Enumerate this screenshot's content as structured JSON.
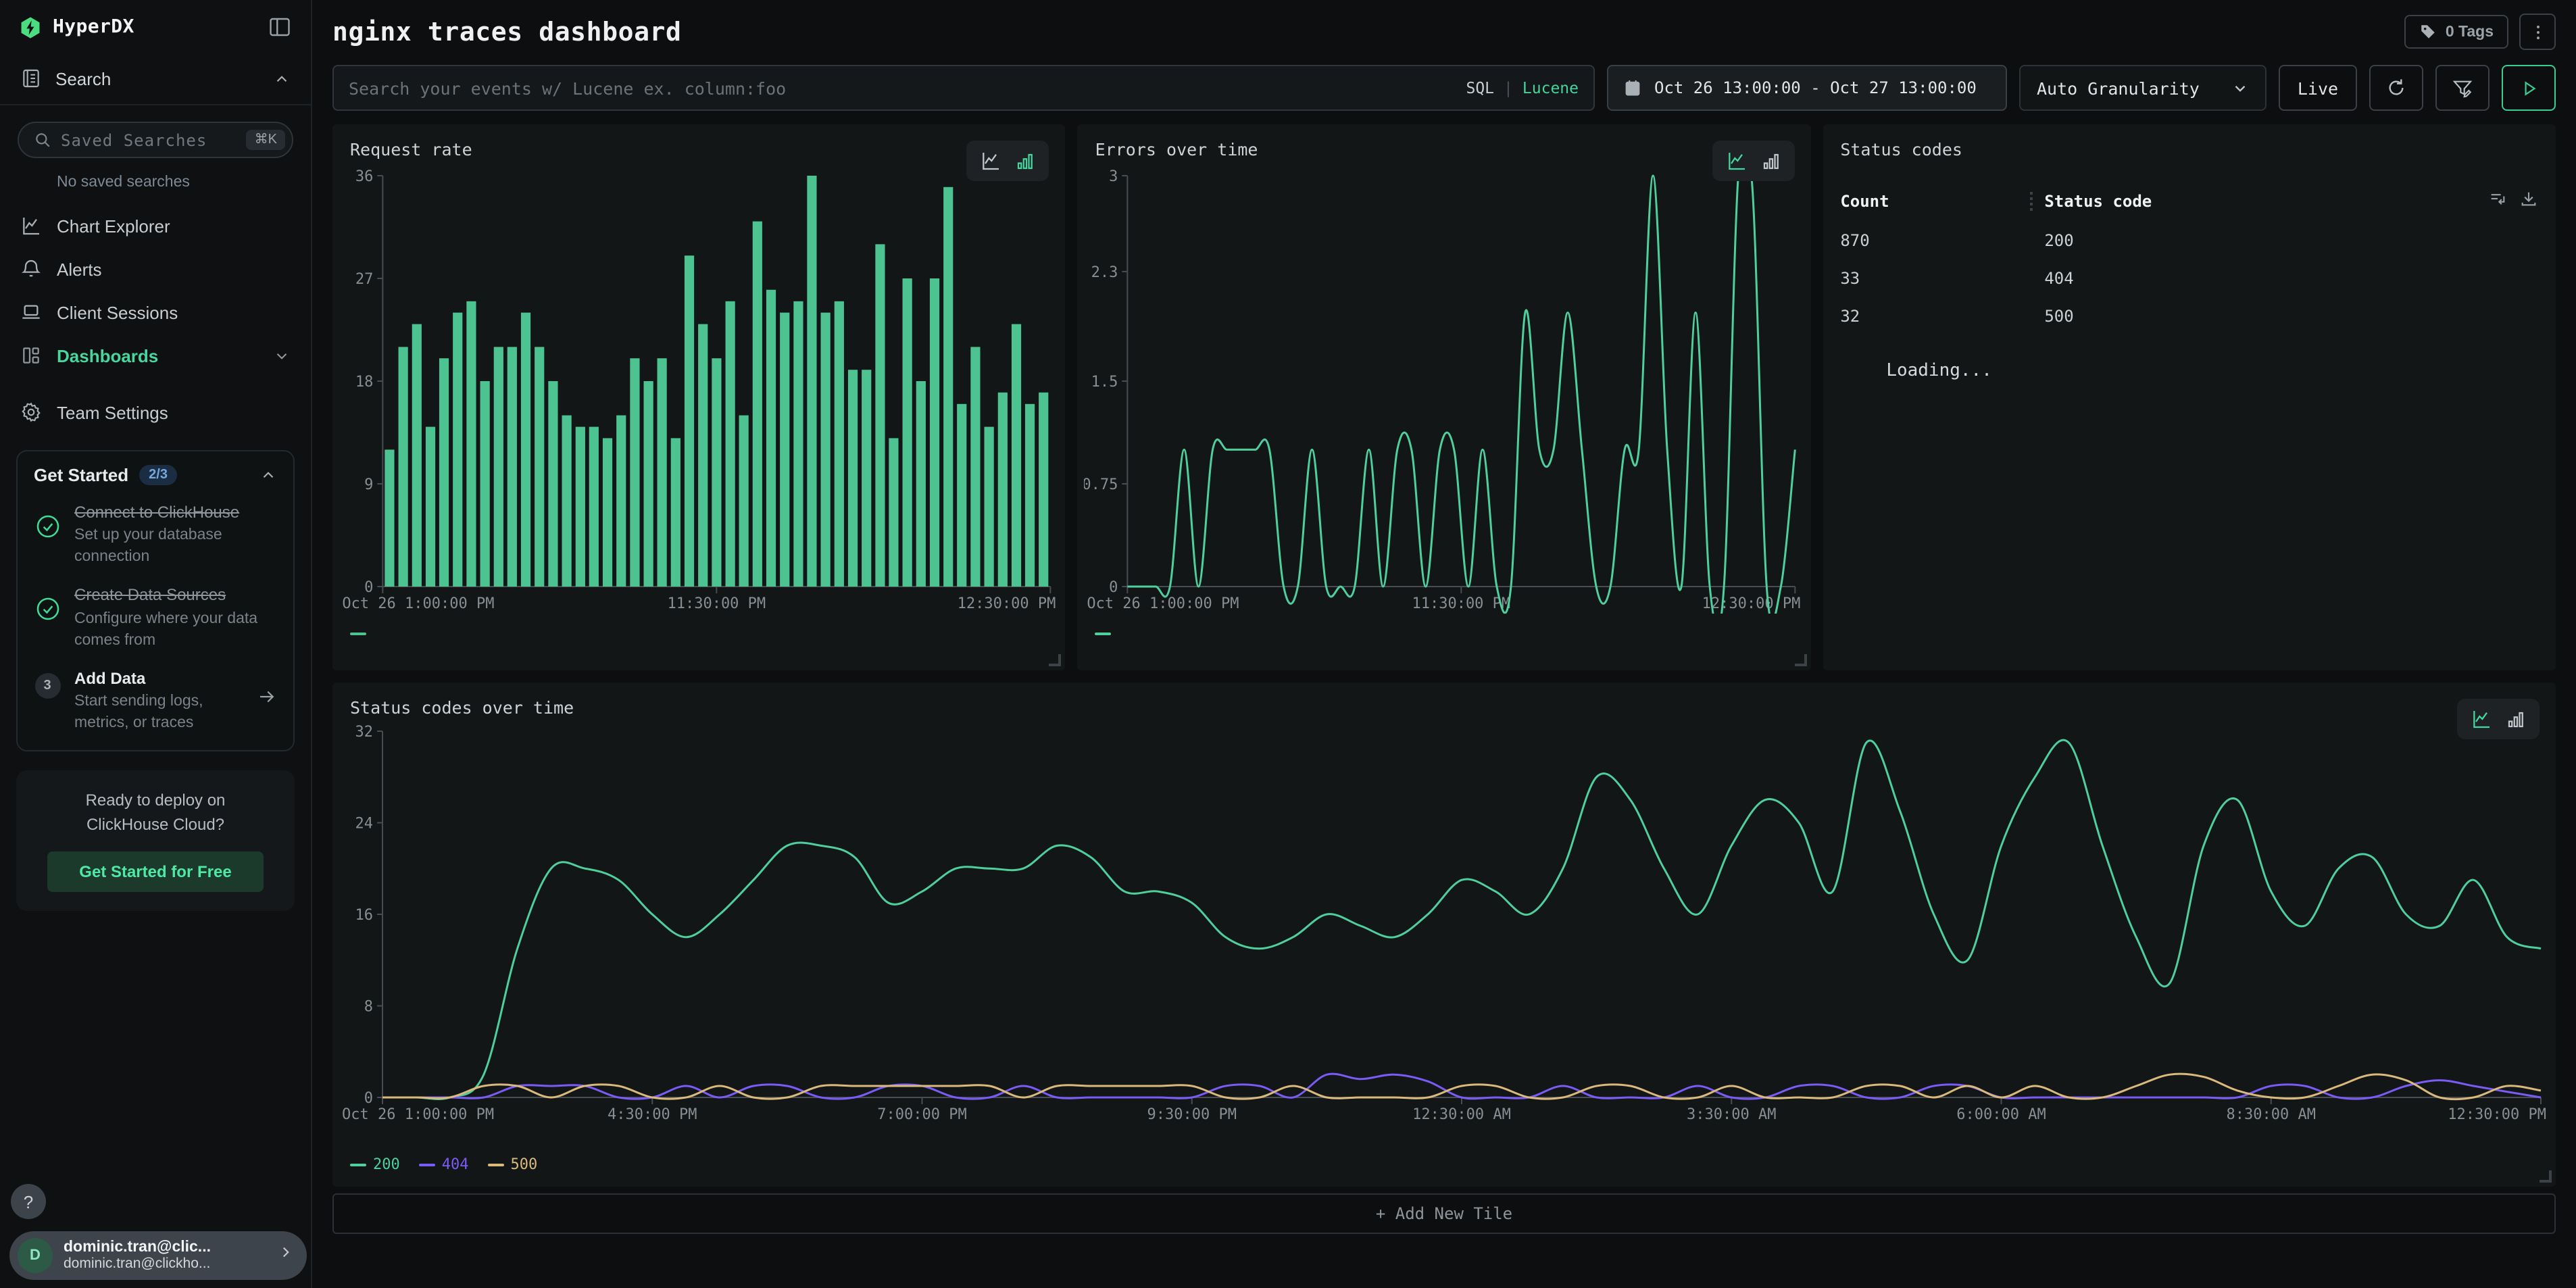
{
  "sidebar": {
    "brand": "HyperDX",
    "search_label": "Search",
    "saved_searches": {
      "placeholder": "Saved Searches",
      "shortcut": "⌘K",
      "empty": "No saved searches"
    },
    "nav": {
      "chart_explorer": "Chart Explorer",
      "alerts": "Alerts",
      "client_sessions": "Client Sessions",
      "dashboards": "Dashboards",
      "team_settings": "Team Settings"
    },
    "get_started": {
      "title": "Get Started",
      "badge": "2/3",
      "items": [
        {
          "title": "Connect to ClickHouse",
          "desc": "Set up your database connection",
          "done": true
        },
        {
          "title": "Create Data Sources",
          "desc": "Configure where your data comes from",
          "done": true
        },
        {
          "num": "3",
          "title": "Add Data",
          "desc": "Start sending logs, metrics, or traces",
          "done": false
        }
      ]
    },
    "cloud_card": {
      "line1": "Ready to deploy on",
      "line2": "ClickHouse Cloud?",
      "cta": "Get Started for Free"
    },
    "help_label": "?",
    "user": {
      "initial": "D",
      "name": "dominic.tran@clic...",
      "email": "dominic.tran@clickho..."
    }
  },
  "header": {
    "title": "nginx traces dashboard",
    "tags_label": "0 Tags"
  },
  "toolbar": {
    "search_placeholder": "Search your events w/ Lucene ex. column:foo",
    "sql_label": "SQL",
    "divider": "|",
    "lucene_label": "Lucene",
    "date_range": "Oct 26 13:00:00 - Oct 27 13:00:00",
    "granularity": "Auto Granularity",
    "live_label": "Live"
  },
  "panels": {
    "request_rate": "Request rate",
    "errors_over_time": "Errors over time",
    "status_codes": "Status codes",
    "status_codes_over_time": "Status codes over time"
  },
  "status_table": {
    "columns": [
      "Count",
      "Status code"
    ],
    "rows": [
      [
        "870",
        "200"
      ],
      [
        "33",
        "404"
      ],
      [
        "32",
        "500"
      ]
    ],
    "loading": "Loading..."
  },
  "add_tile_label": "+ Add New Tile",
  "colors": {
    "accent": "#46d69e",
    "bar": "#4ec392",
    "s200": "#4ecf9d",
    "s404": "#7b5bf5",
    "s500": "#d9b97c"
  },
  "chart_data": [
    {
      "id": "request_rate",
      "type": "bar",
      "title": "Request rate",
      "ylim": [
        0,
        36
      ],
      "yticks": [
        0,
        9,
        18,
        27,
        36
      ],
      "grid": false,
      "legend_position": "bottom-left",
      "x_labels": [
        "Oct 26 1:00:00 PM",
        "11:30:00 PM",
        "12:30:00 PM"
      ],
      "series": [
        {
          "name": "",
          "color": "#4ec392",
          "values": [
            12,
            21,
            23,
            14,
            20,
            24,
            25,
            18,
            21,
            21,
            24,
            21,
            18,
            15,
            14,
            14,
            13,
            15,
            20,
            18,
            20,
            13,
            29,
            23,
            20,
            25,
            15,
            32,
            26,
            24,
            25,
            36,
            24,
            25,
            19,
            19,
            30,
            13,
            27,
            18,
            27,
            35,
            16,
            21,
            14,
            17,
            23,
            16,
            17
          ]
        }
      ]
    },
    {
      "id": "errors_over_time",
      "type": "line",
      "title": "Errors over time",
      "ylim": [
        0,
        3
      ],
      "yticks": [
        0,
        0.75,
        1.5,
        2.3,
        3
      ],
      "grid": false,
      "legend_position": "bottom-left",
      "x_labels": [
        "Oct 26 1:00:00 PM",
        "11:30:00 PM",
        "12:30:00 PM"
      ],
      "series": [
        {
          "name": "",
          "color": "#4ecf9d",
          "values": [
            0,
            0,
            0,
            0,
            1,
            0,
            1,
            1,
            1,
            1,
            1,
            0,
            0,
            1,
            0,
            0,
            0,
            1,
            0,
            1,
            1,
            0,
            1,
            1,
            0,
            1,
            0,
            0,
            2,
            1,
            1,
            2,
            1,
            0,
            0,
            1,
            1,
            3,
            1,
            0,
            2,
            0,
            0,
            3,
            2.9,
            0,
            0,
            1
          ]
        }
      ]
    },
    {
      "id": "status_codes_over_time",
      "type": "line",
      "title": "Status codes over time",
      "ylim": [
        0,
        32
      ],
      "yticks": [
        0,
        8,
        16,
        24,
        32
      ],
      "grid": false,
      "legend_position": "bottom-left",
      "x_labels": [
        "Oct 26 1:00:00 PM",
        "4:30:00 PM",
        "7:00:00 PM",
        "9:30:00 PM",
        "12:30:00 AM",
        "3:30:00 AM",
        "6:00:00 AM",
        "8:30:00 AM",
        "12:30:00 PM"
      ],
      "series": [
        {
          "name": "200",
          "color": "#4ecf9d",
          "values": [
            0,
            0,
            0,
            2,
            13,
            20,
            20,
            19,
            16,
            14,
            16,
            19,
            22,
            22,
            21,
            17,
            18,
            20,
            20,
            20,
            22,
            21,
            18,
            18,
            17,
            14,
            13,
            14,
            16,
            15,
            14,
            16,
            19,
            18,
            16,
            20,
            28,
            26,
            20,
            16,
            22,
            26,
            24,
            18,
            31,
            25,
            16,
            12,
            22,
            28,
            31,
            22,
            14,
            10,
            22,
            26,
            18,
            15,
            20,
            21,
            16,
            15,
            19,
            14,
            13
          ]
        },
        {
          "name": "404",
          "color": "#7b5bf5",
          "values": [
            0,
            0,
            0,
            0,
            1,
            1,
            1,
            0,
            0,
            1,
            0,
            1,
            1,
            0,
            0,
            1,
            1,
            0,
            0,
            1,
            0,
            0,
            0,
            0,
            0,
            1,
            1,
            0,
            2,
            1.6,
            2,
            1.4,
            0,
            0,
            0,
            1,
            0,
            0,
            0,
            1,
            0,
            0,
            1,
            1,
            0,
            0,
            1,
            1,
            0,
            0,
            0,
            0,
            0,
            0,
            0,
            0,
            1,
            1,
            0,
            0,
            1,
            1.5,
            1,
            0.5,
            0
          ]
        },
        {
          "name": "500",
          "color": "#d9b97c",
          "values": [
            0,
            0,
            0,
            1,
            1,
            0,
            1,
            1,
            0,
            0,
            1,
            0,
            0,
            1,
            1,
            1,
            1,
            1,
            1,
            0,
            1,
            1,
            1,
            1,
            1,
            0,
            0,
            1,
            0,
            0,
            0,
            0,
            1,
            1,
            0,
            0,
            1,
            1,
            0,
            0,
            1,
            0,
            0,
            0,
            1,
            1,
            0,
            1,
            0,
            1,
            0,
            0,
            1,
            2,
            1.8,
            0.6,
            0,
            0,
            1,
            2,
            1.5,
            0,
            0,
            1,
            0.6
          ]
        }
      ]
    }
  ]
}
